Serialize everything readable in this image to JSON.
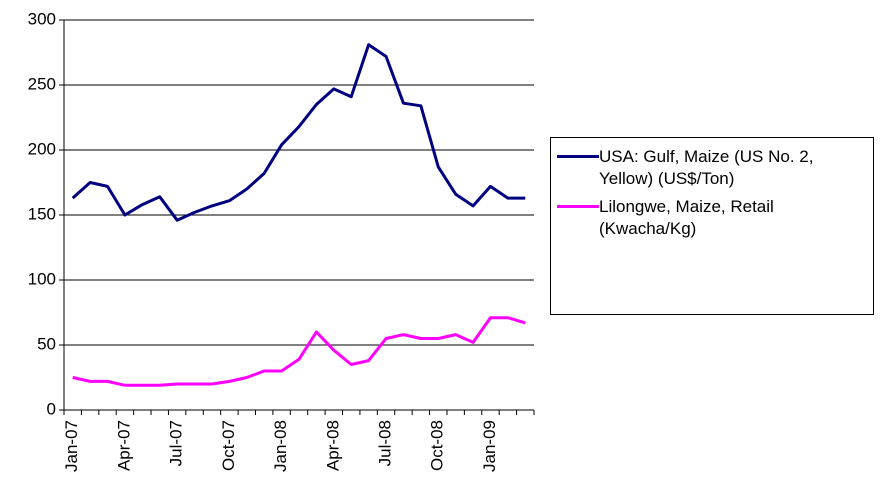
{
  "chart_data": {
    "type": "line",
    "categories": [
      "Jan-07",
      null,
      null,
      "Apr-07",
      null,
      null,
      "Jul-07",
      null,
      null,
      "Oct-07",
      null,
      null,
      "Jan-08",
      null,
      null,
      "Apr-08",
      null,
      null,
      "Jul-08",
      null,
      null,
      "Oct-08",
      null,
      null,
      "Jan-09",
      null,
      null
    ],
    "series": [
      {
        "name": "USA: Gulf, Maize (US No. 2, Yellow) (US$/Ton)",
        "color": "#000080",
        "values": [
          163,
          175,
          172,
          150,
          158,
          164,
          146,
          152,
          157,
          161,
          170,
          182,
          204,
          218,
          235,
          247,
          241,
          281,
          272,
          236,
          234,
          187,
          166,
          157,
          172,
          163,
          163
        ]
      },
      {
        "name": "Lilongwe, Maize, Retail (Kwacha/Kg)",
        "color": "#ff00ff",
        "values": [
          25,
          22,
          22,
          19,
          19,
          19,
          20,
          20,
          20,
          22,
          25,
          30,
          30,
          39,
          60,
          46,
          35,
          38,
          55,
          58,
          55,
          55,
          58,
          52,
          71,
          71,
          67
        ]
      }
    ],
    "ylim": [
      0,
      300
    ],
    "yticks": [
      0,
      50,
      100,
      150,
      200,
      250,
      300
    ],
    "grid": true
  }
}
